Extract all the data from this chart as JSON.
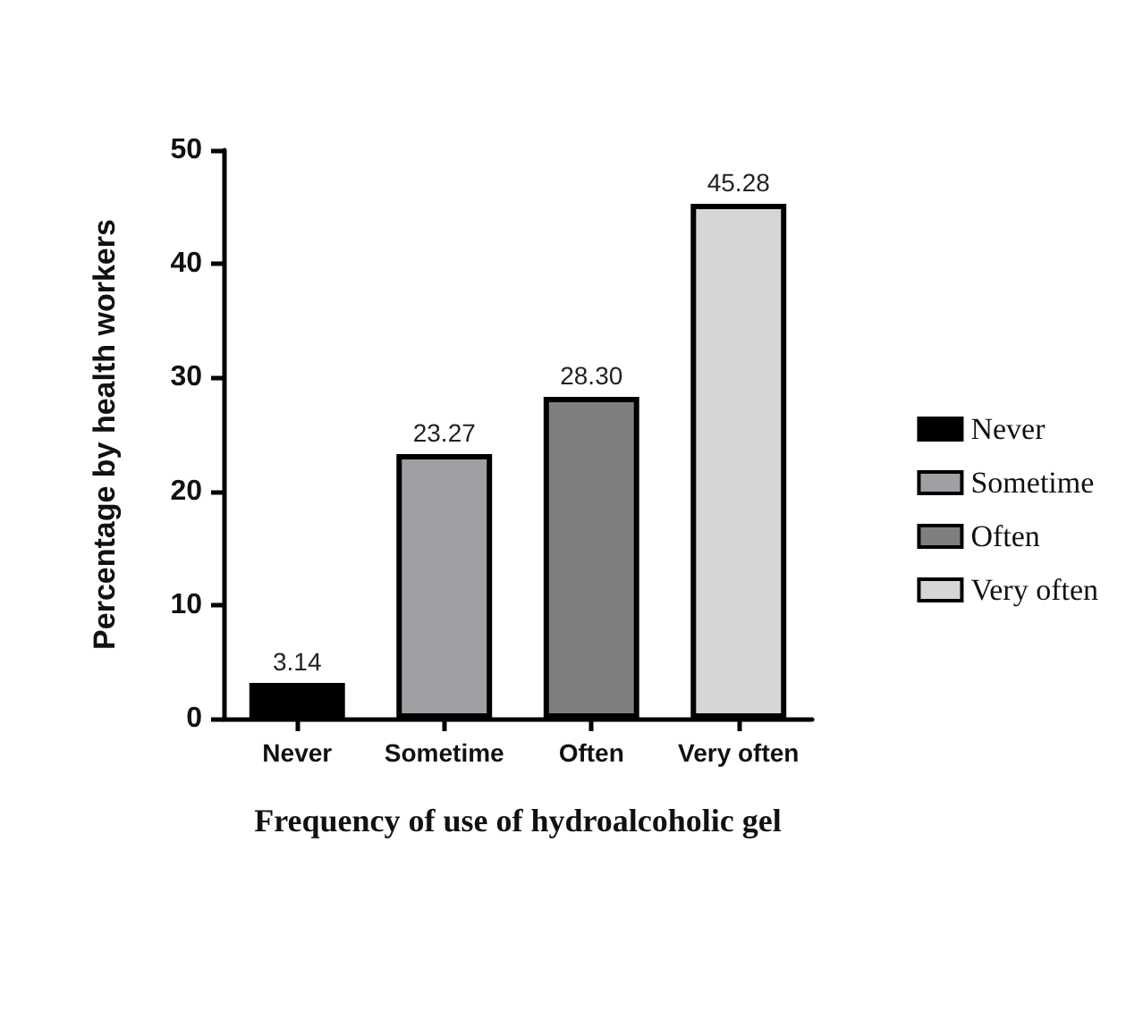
{
  "chart_data": {
    "type": "bar",
    "xlabel": "Frequency of use of hydroalcoholic gel",
    "ylabel": "Percentage by health workers",
    "categories": [
      "Never",
      "Sometime",
      "Often",
      "Very often"
    ],
    "series": [
      {
        "name": "Never",
        "color": "#000000",
        "values": [
          3.14,
          null,
          null,
          null
        ],
        "value_labels": [
          "3.14",
          null,
          null,
          null
        ]
      },
      {
        "name": "Sometime",
        "color": "#a0a0a4",
        "values": [
          null,
          23.27,
          null,
          null
        ],
        "value_labels": [
          null,
          "23.27",
          null,
          null
        ]
      },
      {
        "name": "Often",
        "color": "#7f7f7f",
        "values": [
          null,
          null,
          28.3,
          null
        ],
        "value_labels": [
          null,
          null,
          "28.30",
          null
        ]
      },
      {
        "name": "Very often",
        "color": "#d6d6d6",
        "values": [
          null,
          null,
          null,
          45.28
        ],
        "value_labels": [
          null,
          null,
          null,
          "45.28"
        ]
      }
    ],
    "ylim": [
      0,
      50
    ],
    "yticks": [
      0,
      10,
      20,
      30,
      40,
      50
    ],
    "legend": "right",
    "grid": false
  }
}
